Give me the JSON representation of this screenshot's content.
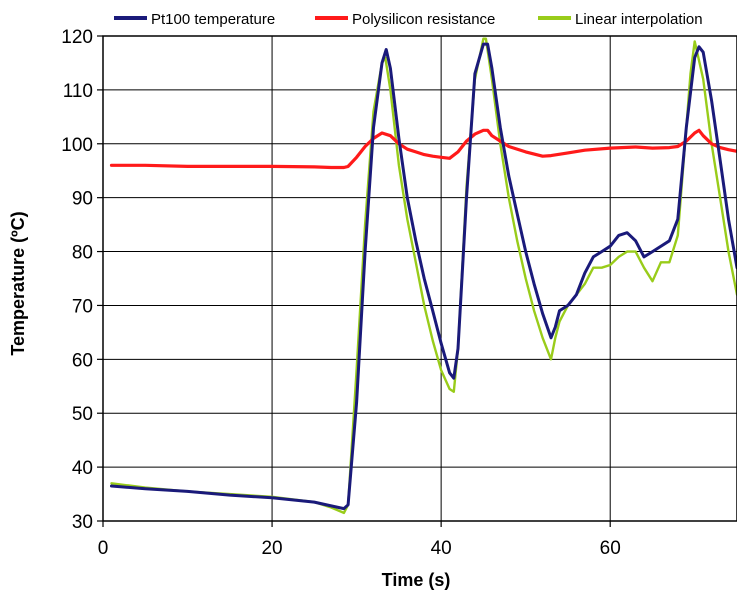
{
  "chart_data": {
    "type": "line",
    "title": "",
    "xlabel": "Time (s)",
    "ylabel": "Temperature (ºC)",
    "xlim": [
      0,
      75
    ],
    "ylim": [
      30,
      120
    ],
    "xticks": [
      0,
      20,
      40,
      60
    ],
    "yticks": [
      30,
      40,
      50,
      60,
      70,
      80,
      90,
      100,
      110,
      120
    ],
    "grid": true,
    "legend_position": "top",
    "series": [
      {
        "name": "Pt100 temperature",
        "color": "#1a1a7a",
        "x": [
          1,
          5,
          10,
          15,
          20,
          25,
          27,
          28.5,
          29,
          30,
          31,
          32,
          33,
          33.5,
          34,
          35,
          36,
          37,
          38,
          39,
          40,
          41,
          41.5,
          42,
          43,
          44,
          45,
          45.5,
          46,
          47,
          48,
          49,
          50,
          51,
          52,
          53,
          53.5,
          54,
          55,
          56,
          57,
          58,
          59,
          60,
          61,
          62,
          63,
          64,
          65,
          66,
          67,
          68,
          69,
          70,
          70.5,
          71,
          72,
          73,
          74,
          75
        ],
        "y": [
          36.5,
          36,
          35.5,
          34.8,
          34.3,
          33.5,
          32.8,
          32.3,
          33,
          52,
          80,
          103,
          115,
          117.5,
          114,
          101,
          90,
          82,
          75,
          69,
          63,
          57.5,
          56.5,
          62,
          90,
          113,
          118.5,
          118.5,
          114,
          103,
          94,
          87,
          80,
          74,
          68.5,
          64,
          66,
          69,
          70,
          72,
          76,
          79,
          80,
          81,
          83,
          83.5,
          82,
          79,
          80,
          81,
          82,
          86,
          103,
          116,
          118,
          117,
          108,
          97,
          86,
          77
        ]
      },
      {
        "name": "Polysilicon resistance",
        "color": "#ff1a1a",
        "x": [
          1,
          5,
          10,
          15,
          20,
          25,
          27,
          28.5,
          29,
          30,
          31,
          32,
          33,
          34,
          35,
          36,
          37,
          38,
          39,
          40,
          41,
          42,
          43,
          44,
          45,
          45.5,
          46,
          47,
          48,
          50,
          52,
          53,
          55,
          57,
          60,
          63,
          65,
          67,
          68,
          69,
          70,
          70.5,
          71,
          72,
          73,
          74,
          75
        ],
        "y": [
          96,
          96,
          95.8,
          95.8,
          95.8,
          95.7,
          95.6,
          95.6,
          95.8,
          97.5,
          99.5,
          101,
          102,
          101.5,
          100,
          99,
          98.5,
          98,
          97.7,
          97.5,
          97.3,
          98.5,
          100.5,
          101.8,
          102.5,
          102.5,
          101.5,
          100.5,
          99.5,
          98.5,
          97.7,
          97.8,
          98.3,
          98.8,
          99.2,
          99.4,
          99.2,
          99.3,
          99.5,
          100.5,
          102,
          102.5,
          101.5,
          100,
          99.3,
          98.9,
          98.6
        ]
      },
      {
        "name": "Linear interpolation",
        "color": "#99cc1a",
        "x": [
          1,
          5,
          10,
          15,
          20,
          25,
          27,
          28.5,
          29,
          30,
          31,
          32,
          33,
          33.4,
          34,
          35,
          36,
          37,
          38,
          39,
          40,
          41,
          41.5,
          42,
          43,
          44,
          45,
          45.3,
          46,
          47,
          48,
          49,
          50,
          51,
          52,
          53,
          53.5,
          54,
          55,
          56,
          57,
          58,
          59,
          60,
          61,
          62,
          63,
          64,
          65,
          66,
          67,
          68,
          69,
          69.5,
          70,
          71,
          72,
          73,
          74,
          75
        ],
        "y": [
          37,
          36.2,
          35.5,
          35,
          34.5,
          33.5,
          32.5,
          31.5,
          33,
          58,
          85,
          106,
          115,
          116,
          110,
          96,
          86,
          78,
          70,
          63.5,
          58,
          54.5,
          54,
          62,
          92,
          112,
          119.5,
          119.5,
          112,
          100,
          90,
          82,
          75,
          69,
          64,
          60,
          64,
          67,
          70,
          72,
          74,
          77,
          77,
          77.5,
          79,
          80,
          80,
          77,
          74.5,
          78,
          78,
          83,
          103,
          113,
          119,
          112,
          100,
          90,
          80,
          72
        ]
      }
    ]
  }
}
